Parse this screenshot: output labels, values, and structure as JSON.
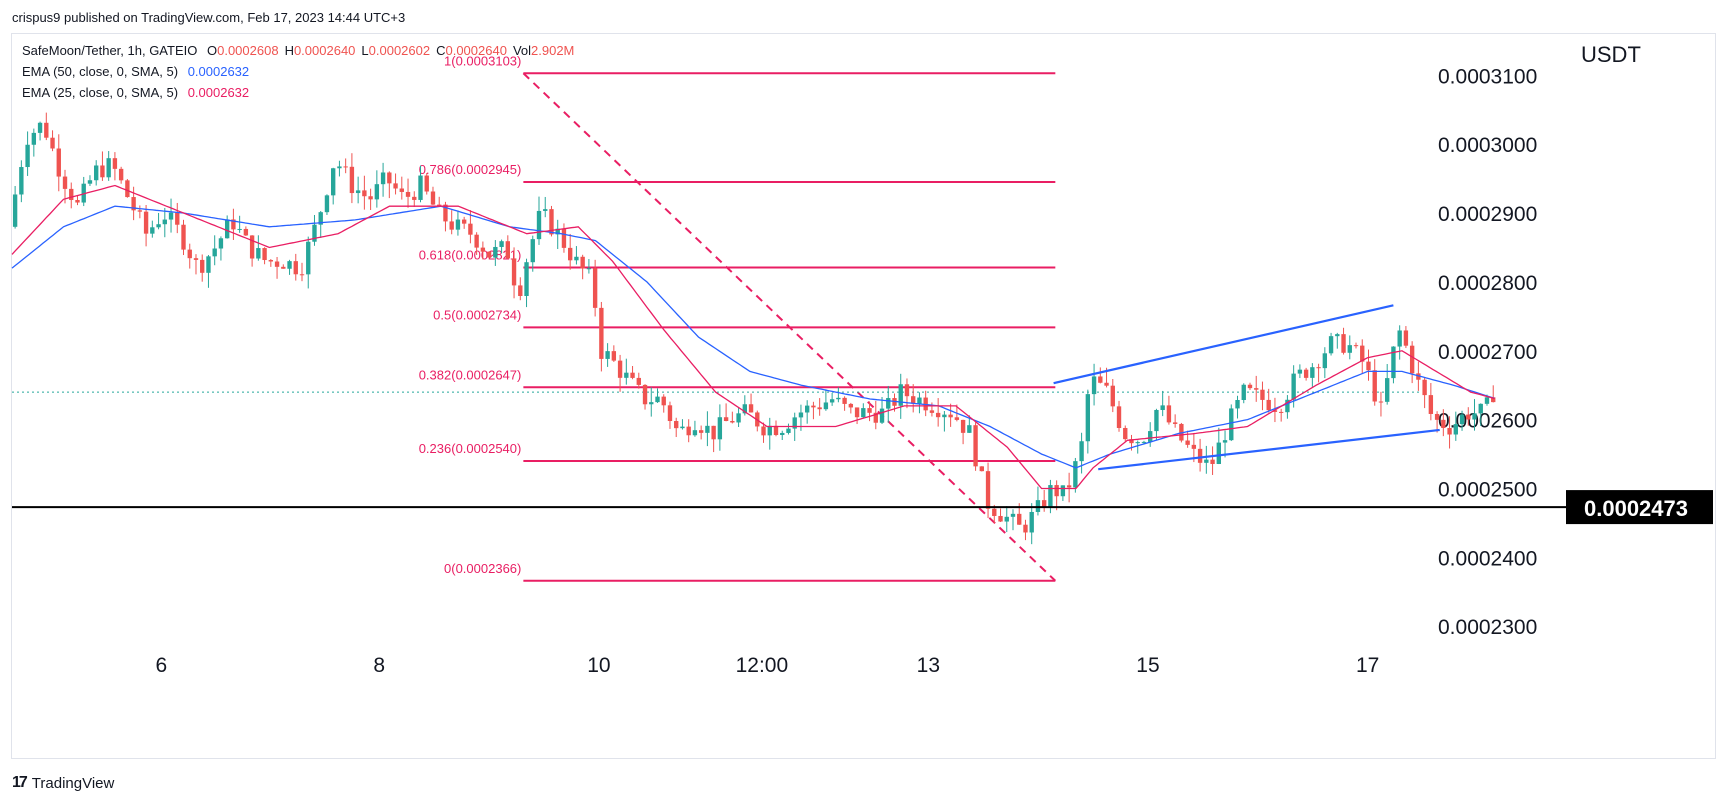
{
  "header": {
    "published": "crispus9 published on TradingView.com, Feb 17, 2023 14:44 UTC+3"
  },
  "footer": {
    "logo_text": "TradingView",
    "logo_mark": "17"
  },
  "legend": {
    "symbol": "SafeMoon/Tether, 1h, GATEIO",
    "ohlc": [
      {
        "k": "O",
        "v": "0.0002608"
      },
      {
        "k": "H",
        "v": "0.0002640"
      },
      {
        "k": "L",
        "v": "0.0002602"
      },
      {
        "k": "C",
        "v": "0.0002640"
      },
      {
        "k": "Vol",
        "v": "2.902M"
      }
    ],
    "ema50": {
      "label": "EMA (50, close, 0, SMA, 5)",
      "value": "0.0002632",
      "color": "#2962ff"
    },
    "ema25": {
      "label": "EMA (25, close, 0, SMA, 5)",
      "value": "0.0002632",
      "color": "#e91e63"
    }
  },
  "colors": {
    "up": "#26a69a",
    "down": "#ef5350",
    "fib": "#e91e63",
    "channel": "#2962ff",
    "ema50": "#2962ff",
    "ema25": "#e91e63"
  },
  "chart_data": {
    "type": "candlestick",
    "currency": "USDT",
    "ylim": [
      0.000228,
      0.000316
    ],
    "y_ticks": [
      "0.0003100",
      "0.0003000",
      "0.0002900",
      "0.0002800",
      "0.0002700",
      "0.0002600",
      "0.0002500",
      "0.0002400",
      "0.0002300"
    ],
    "x_ticks": [
      {
        "label": "6",
        "pos": 0.087
      },
      {
        "label": "8",
        "pos": 0.214
      },
      {
        "label": "10",
        "pos": 0.342
      },
      {
        "label": "12:00",
        "pos": 0.437
      },
      {
        "label": "13",
        "pos": 0.534
      },
      {
        "label": "15",
        "pos": 0.662
      },
      {
        "label": "17",
        "pos": 0.79
      }
    ],
    "support_level": {
      "value": 0.0002473,
      "label": "0.0002473"
    },
    "last_price": 0.000264,
    "fibonacci": [
      {
        "level": "1",
        "value": 0.0003103,
        "label": "1(0.0003103)"
      },
      {
        "level": "0.786",
        "value": 0.0002945,
        "label": "0.786(0.0002945)"
      },
      {
        "level": "0.618",
        "value": 0.0002821,
        "label": "0.618(0.0002821)"
      },
      {
        "level": "0.5",
        "value": 0.0002734,
        "label": "0.5(0.0002734)"
      },
      {
        "level": "0.382",
        "value": 0.0002647,
        "label": "0.382(0.0002647)"
      },
      {
        "level": "0.236",
        "value": 0.000254,
        "label": "0.236(0.0002540)"
      },
      {
        "level": "0",
        "value": 0.0002366,
        "label": "0(0.0002366)"
      }
    ],
    "fib_range": {
      "start": 0.298,
      "end": 0.608
    },
    "fib_diagonal": {
      "from": {
        "x": 0.298,
        "y": 0.0003103
      },
      "to": {
        "x": 0.608,
        "y": 0.0002366
      }
    },
    "channel": {
      "upper": {
        "from": {
          "x": 0.607,
          "y": 0.0002653
        },
        "to": {
          "x": 0.805,
          "y": 0.0002766
        }
      },
      "lower": {
        "from": {
          "x": 0.633,
          "y": 0.0002528
        },
        "to": {
          "x": 0.832,
          "y": 0.0002585
        }
      }
    },
    "series": [
      {
        "name": "price",
        "anchors": [
          [
            0.0,
            0.000288
          ],
          [
            0.01,
            0.000301
          ],
          [
            0.02,
            0.000303
          ],
          [
            0.03,
            0.000296
          ],
          [
            0.04,
            0.000291
          ],
          [
            0.05,
            0.000296
          ],
          [
            0.06,
            0.000297
          ],
          [
            0.07,
            0.000292
          ],
          [
            0.08,
            0.000287
          ],
          [
            0.09,
            0.00029
          ],
          [
            0.1,
            0.000287
          ],
          [
            0.11,
            0.000282
          ],
          [
            0.12,
            0.000285
          ],
          [
            0.13,
            0.000289
          ],
          [
            0.14,
            0.000285
          ],
          [
            0.15,
            0.000283
          ],
          [
            0.16,
            0.000283
          ],
          [
            0.17,
            0.000282
          ],
          [
            0.18,
            0.000289
          ],
          [
            0.19,
            0.000298
          ],
          [
            0.2,
            0.000294
          ],
          [
            0.21,
            0.000292
          ],
          [
            0.22,
            0.000295
          ],
          [
            0.23,
            0.000292
          ],
          [
            0.24,
            0.000294
          ],
          [
            0.25,
            0.00029
          ],
          [
            0.26,
            0.000288
          ],
          [
            0.27,
            0.000287
          ],
          [
            0.28,
            0.000284
          ],
          [
            0.29,
            0.000285
          ],
          [
            0.297,
            0.000278
          ],
          [
            0.3,
            0.000282
          ],
          [
            0.31,
            0.00029
          ],
          [
            0.32,
            0.000287
          ],
          [
            0.33,
            0.000283
          ],
          [
            0.34,
            0.00028
          ],
          [
            0.345,
            0.00027
          ],
          [
            0.35,
            0.000269
          ],
          [
            0.36,
            0.000266
          ],
          [
            0.37,
            0.000263
          ],
          [
            0.38,
            0.000263
          ],
          [
            0.39,
            0.000258
          ],
          [
            0.4,
            0.00026
          ],
          [
            0.41,
            0.000258
          ],
          [
            0.42,
            0.00026
          ],
          [
            0.43,
            0.000261
          ],
          [
            0.44,
            0.000259
          ],
          [
            0.45,
            0.000259
          ],
          [
            0.46,
            0.000261
          ],
          [
            0.47,
            0.000262
          ],
          [
            0.48,
            0.000263
          ],
          [
            0.49,
            0.000261
          ],
          [
            0.5,
            0.000261
          ],
          [
            0.51,
            0.000261
          ],
          [
            0.52,
            0.000264
          ],
          [
            0.53,
            0.000263
          ],
          [
            0.54,
            0.000262
          ],
          [
            0.55,
            0.000261
          ],
          [
            0.56,
            0.000258
          ],
          [
            0.565,
            0.000253
          ],
          [
            0.57,
            0.000248
          ],
          [
            0.58,
            0.000246
          ],
          [
            0.59,
            0.000244
          ],
          [
            0.6,
            0.000247
          ],
          [
            0.608,
            0.00025
          ],
          [
            0.615,
            0.000249
          ],
          [
            0.62,
            0.000252
          ],
          [
            0.625,
            0.000256
          ],
          [
            0.63,
            0.000266
          ],
          [
            0.64,
            0.000264
          ],
          [
            0.65,
            0.000258
          ],
          [
            0.66,
            0.000257
          ],
          [
            0.67,
            0.000262
          ],
          [
            0.68,
            0.000258
          ],
          [
            0.69,
            0.000255
          ],
          [
            0.7,
            0.000253
          ],
          [
            0.71,
            0.000259
          ],
          [
            0.72,
            0.000264
          ],
          [
            0.73,
            0.000263
          ],
          [
            0.74,
            0.000262
          ],
          [
            0.75,
            0.000266
          ],
          [
            0.76,
            0.000268
          ],
          [
            0.77,
            0.000271
          ],
          [
            0.78,
            0.000271
          ],
          [
            0.79,
            0.000268
          ],
          [
            0.8,
            0.000261
          ],
          [
            0.805,
            0.000268
          ],
          [
            0.81,
            0.000273
          ],
          [
            0.815,
            0.00027
          ],
          [
            0.82,
            0.000266
          ],
          [
            0.83,
            0.00026
          ],
          [
            0.84,
            0.000259
          ],
          [
            0.85,
            0.000261
          ],
          [
            0.86,
            0.000261
          ],
          [
            0.865,
            0.000264
          ]
        ]
      },
      {
        "name": "EMA 50",
        "anchors": [
          [
            0.0,
            0.000282
          ],
          [
            0.03,
            0.000288
          ],
          [
            0.06,
            0.000291
          ],
          [
            0.1,
            0.00029
          ],
          [
            0.15,
            0.000288
          ],
          [
            0.2,
            0.000289
          ],
          [
            0.25,
            0.000291
          ],
          [
            0.29,
            0.000288
          ],
          [
            0.32,
            0.000287
          ],
          [
            0.34,
            0.000286
          ],
          [
            0.37,
            0.00028
          ],
          [
            0.4,
            0.000272
          ],
          [
            0.43,
            0.000267
          ],
          [
            0.46,
            0.000265
          ],
          [
            0.5,
            0.000263
          ],
          [
            0.54,
            0.000262
          ],
          [
            0.57,
            0.000259
          ],
          [
            0.6,
            0.000255
          ],
          [
            0.62,
            0.000253
          ],
          [
            0.64,
            0.000255
          ],
          [
            0.68,
            0.000258
          ],
          [
            0.72,
            0.00026
          ],
          [
            0.76,
            0.000264
          ],
          [
            0.79,
            0.000267
          ],
          [
            0.81,
            0.000267
          ],
          [
            0.84,
            0.000265
          ],
          [
            0.865,
            0.000263
          ]
        ]
      },
      {
        "name": "EMA 25",
        "anchors": [
          [
            0.0,
            0.000284
          ],
          [
            0.03,
            0.000292
          ],
          [
            0.06,
            0.000294
          ],
          [
            0.1,
            0.00029
          ],
          [
            0.15,
            0.000285
          ],
          [
            0.19,
            0.000287
          ],
          [
            0.22,
            0.000291
          ],
          [
            0.26,
            0.000291
          ],
          [
            0.3,
            0.000287
          ],
          [
            0.33,
            0.000288
          ],
          [
            0.35,
            0.000283
          ],
          [
            0.38,
            0.000273
          ],
          [
            0.41,
            0.000264
          ],
          [
            0.44,
            0.000259
          ],
          [
            0.48,
            0.000259
          ],
          [
            0.52,
            0.000262
          ],
          [
            0.55,
            0.000262
          ],
          [
            0.58,
            0.000256
          ],
          [
            0.6,
            0.00025
          ],
          [
            0.62,
            0.00025
          ],
          [
            0.63,
            0.000253
          ],
          [
            0.65,
            0.000257
          ],
          [
            0.69,
            0.000258
          ],
          [
            0.72,
            0.000259
          ],
          [
            0.76,
            0.000265
          ],
          [
            0.79,
            0.000269
          ],
          [
            0.81,
            0.00027
          ],
          [
            0.83,
            0.000267
          ],
          [
            0.85,
            0.000264
          ],
          [
            0.865,
            0.000263
          ]
        ]
      }
    ]
  }
}
